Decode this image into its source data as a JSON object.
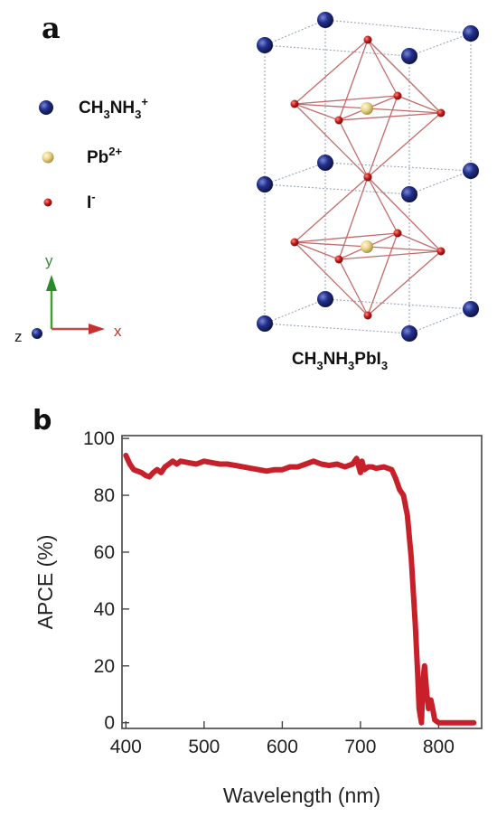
{
  "panel_a": {
    "letter": "a",
    "legend": [
      {
        "main": "CH",
        "parts": [
          [
            "CH",
            ""
          ],
          [
            "3",
            "sub"
          ],
          [
            "NH",
            ""
          ],
          [
            "3",
            "sub"
          ],
          [
            "+",
            "sup"
          ]
        ],
        "color": "#1c2a78"
      },
      {
        "parts": [
          [
            "Pb",
            ""
          ],
          [
            "2+",
            "sup"
          ]
        ],
        "color": "#e8d48a"
      },
      {
        "parts": [
          [
            "I",
            ""
          ],
          [
            "-",
            "sup"
          ]
        ],
        "color": "#b01a1a"
      }
    ],
    "axes": {
      "y": "y",
      "x": "x",
      "z": "z"
    },
    "formula": [
      [
        "CH",
        ""
      ],
      [
        "3",
        "sub"
      ],
      [
        "NH",
        ""
      ],
      [
        "3",
        "sub"
      ],
      [
        "PbI",
        ""
      ],
      [
        "3",
        "sub"
      ]
    ]
  },
  "panel_b": {
    "letter": "b"
  },
  "chart_data": {
    "type": "line",
    "xlabel": "Wavelength (nm)",
    "ylabel": "APCE (%)",
    "xlim": [
      395,
      855
    ],
    "ylim": [
      -2,
      101
    ],
    "xticks": [
      400,
      500,
      600,
      700,
      800
    ],
    "yticks": [
      0,
      20,
      40,
      60,
      80,
      100
    ],
    "series": [
      {
        "color": "#c8202a",
        "x": [
          400,
          405,
          410,
          415,
          420,
          425,
          430,
          435,
          440,
          445,
          450,
          455,
          460,
          465,
          470,
          480,
          490,
          500,
          510,
          520,
          530,
          540,
          550,
          560,
          570,
          580,
          590,
          600,
          610,
          620,
          630,
          640,
          650,
          660,
          670,
          680,
          690,
          695,
          700,
          702,
          705,
          710,
          715,
          720,
          730,
          740,
          745,
          750,
          755,
          760,
          765,
          770,
          773,
          775,
          778,
          780,
          782,
          785,
          787,
          790,
          793,
          795,
          800,
          810,
          820,
          830,
          845
        ],
        "y": [
          94,
          91,
          89,
          88.5,
          88,
          87,
          86.5,
          88,
          89,
          88,
          90,
          91,
          92,
          91,
          92,
          91.5,
          91,
          92,
          91.5,
          91,
          91,
          90.5,
          90,
          89.5,
          89,
          88.5,
          89,
          89,
          90,
          90,
          91,
          92,
          91,
          90.5,
          91,
          90,
          91,
          93,
          88,
          92,
          89,
          90,
          90,
          89.5,
          90,
          89,
          86,
          82,
          80,
          73,
          58,
          35,
          18,
          5,
          0,
          15,
          20,
          10,
          5,
          8,
          4,
          1,
          0,
          0,
          0,
          0,
          0
        ]
      }
    ]
  }
}
